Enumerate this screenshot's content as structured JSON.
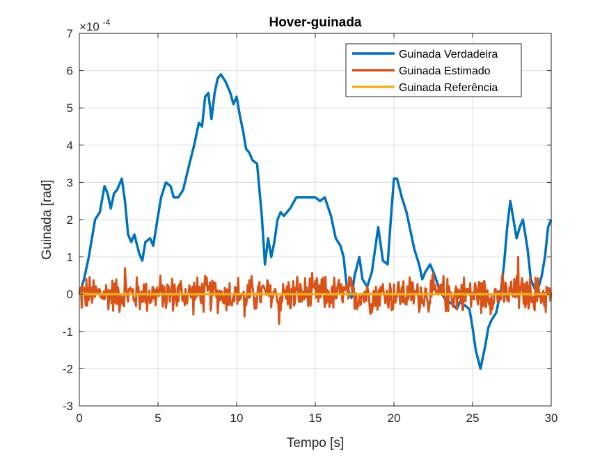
{
  "chart_data": {
    "type": "line",
    "title": "Hover-guinada",
    "xlabel": "Tempo [s]",
    "ylabel": "Guinada [rad]",
    "xlim": [
      0,
      30
    ],
    "ylim": [
      -3,
      7
    ],
    "y_scale_exponent": {
      "base": "×10",
      "power": "-4"
    },
    "x_ticks": [
      "0",
      "5",
      "10",
      "15",
      "20",
      "25",
      "30"
    ],
    "y_ticks": [
      "-3",
      "-2",
      "-1",
      "0",
      "1",
      "2",
      "3",
      "4",
      "5",
      "6",
      "7"
    ],
    "grid": true,
    "legend_position": "top-right",
    "series": [
      {
        "name": "Guinada Verdadeira",
        "color": "#0072BD",
        "x": [
          0,
          0.3,
          0.6,
          1,
          1.3,
          1.6,
          1.8,
          2,
          2.2,
          2.4,
          2.7,
          2.9,
          3.1,
          3.3,
          3.5,
          3.8,
          4,
          4.2,
          4.5,
          4.7,
          5,
          5.2,
          5.5,
          5.8,
          6,
          6.3,
          6.6,
          7,
          7.3,
          7.6,
          7.8,
          8,
          8.2,
          8.4,
          8.6,
          8.8,
          9,
          9.3,
          9.6,
          9.8,
          10,
          10.2,
          10.4,
          10.6,
          10.8,
          11,
          11.3,
          11.6,
          11.8,
          12,
          12.2,
          12.4,
          12.6,
          12.8,
          13,
          13.4,
          13.8,
          14.2,
          14.6,
          15,
          15.3,
          15.6,
          16,
          16.3,
          16.6,
          16.8,
          17,
          17.3,
          17.5,
          17.8,
          18,
          18.3,
          18.6,
          19,
          19.3,
          19.6,
          19.8,
          20,
          20.2,
          20.5,
          20.8,
          21,
          21.3,
          21.6,
          21.8,
          22,
          22.3,
          22.6,
          22.9,
          23.2,
          23.5,
          23.8,
          24,
          24.2,
          24.5,
          24.8,
          25,
          25.2,
          25.5,
          25.8,
          26,
          26.2,
          26.5,
          26.8,
          27,
          27.2,
          27.4,
          27.6,
          27.8,
          28,
          28.2,
          28.5,
          28.7,
          29,
          29.2,
          29.4,
          29.6,
          29.8,
          30
        ],
        "y": [
          0,
          0.4,
          1,
          2,
          2.2,
          2.9,
          2.7,
          2.3,
          2.7,
          2.8,
          3.1,
          2.5,
          1.6,
          1.4,
          1.6,
          1.1,
          0.9,
          1.4,
          1.5,
          1.3,
          2.1,
          2.6,
          3.0,
          2.9,
          2.6,
          2.6,
          2.8,
          3.5,
          4.0,
          4.6,
          4.5,
          5.3,
          5.4,
          4.7,
          5.4,
          5.8,
          5.9,
          5.7,
          5.4,
          5.1,
          5.3,
          4.8,
          4.4,
          3.9,
          3.8,
          3.6,
          3.5,
          2.1,
          0.8,
          1.5,
          1.0,
          1.4,
          2.0,
          2.2,
          2.1,
          2.3,
          2.6,
          2.6,
          2.6,
          2.6,
          2.5,
          2.6,
          2.1,
          1.5,
          1.3,
          1.0,
          0.2,
          -0.1,
          0.5,
          1.0,
          0.4,
          0.2,
          0.6,
          1.8,
          0.9,
          0.8,
          2.0,
          3.1,
          3.1,
          2.6,
          2.2,
          1.8,
          1.2,
          0.8,
          0.4,
          0.6,
          0.8,
          0.5,
          0.1,
          -0.1,
          -0.2,
          -0.3,
          -0.4,
          -0.2,
          -0.3,
          -0.4,
          -0.9,
          -1.5,
          -2.0,
          -1.4,
          -0.9,
          -0.7,
          -0.5,
          0.1,
          0.8,
          1.8,
          2.5,
          2.0,
          1.5,
          1.8,
          2.0,
          1.2,
          0.4,
          0.1,
          0.2,
          0.5,
          1.0,
          1.8,
          2.0
        ]
      },
      {
        "name": "Guinada Estimado",
        "color": "#D95319",
        "x_range": [
          0,
          30
        ],
        "noise_amplitude": 0.6,
        "peaks": [
          {
            "x": 2.9,
            "y": 0.7
          },
          {
            "x": 27.9,
            "y": 1.0
          },
          {
            "x": 10.5,
            "y": -0.6
          },
          {
            "x": 12.7,
            "y": -0.8
          }
        ]
      },
      {
        "name": "Guinada Referência",
        "color": "#EDB120",
        "x": [
          0,
          30
        ],
        "y": [
          0,
          0
        ]
      }
    ]
  }
}
